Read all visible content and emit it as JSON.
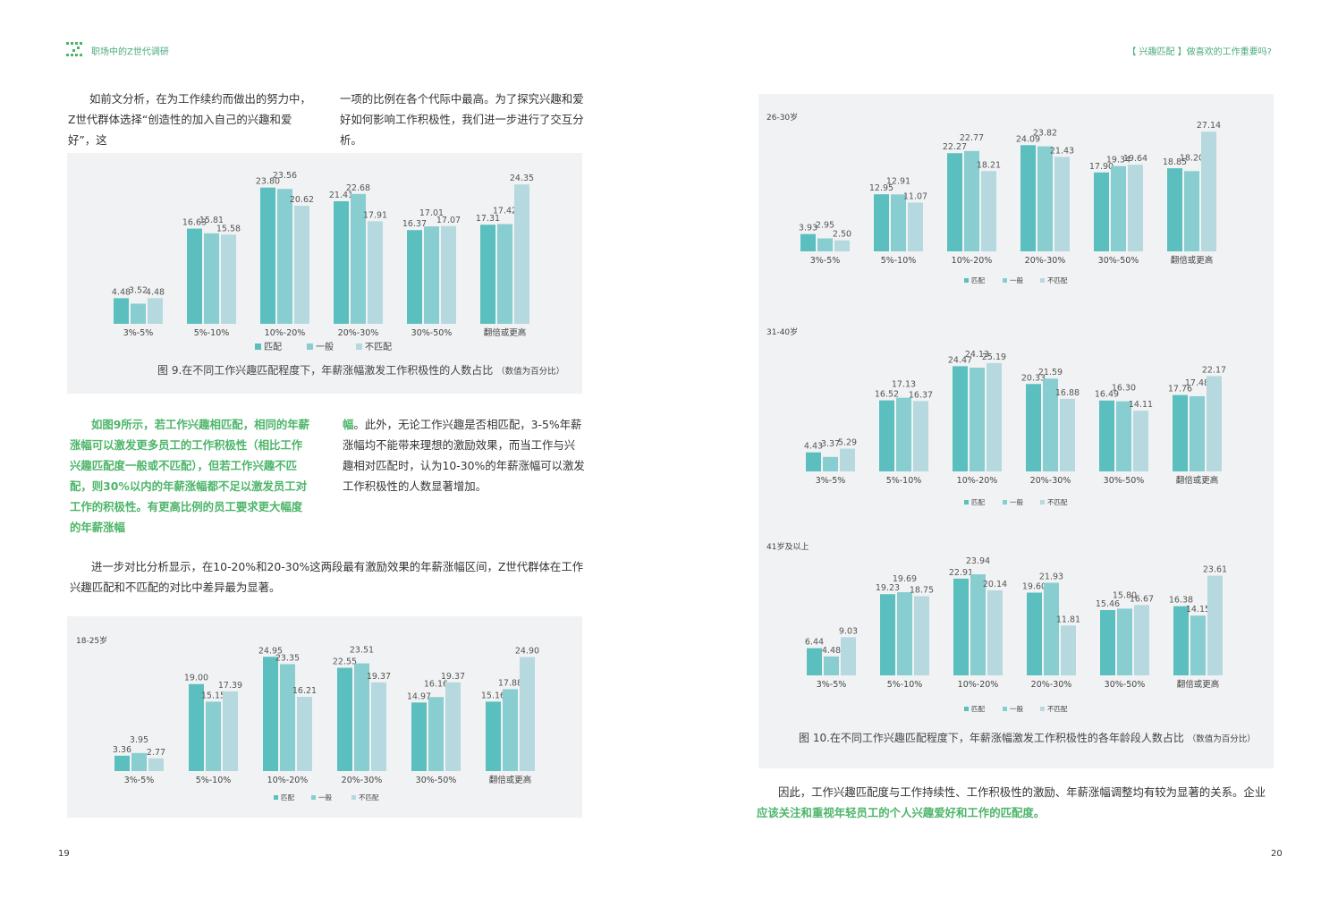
{
  "header": {
    "left_title": "职场中的Z世代调研",
    "right_title": "【 兴趣匹配 】做喜欢的工作重要吗?"
  },
  "page_left": {
    "intro_col1": "如前文分析，在为工作续约而做出的努力中，Z世代群体选择“创造性的加入自己的兴趣和爱好”，这",
    "intro_col2": "一项的比例在各个代际中最高。为了探究兴趣和爱好如何影响工作积极性，我们进一步进行了交互分析。",
    "fig9_caption": "图 9.在不同工作兴趣匹配程度下，年薪涨幅激发工作积极性的人数占比",
    "fig9_note": "（数值为百分比）",
    "highlight_green": "如图9所示，若工作兴趣相匹配，相同的年薪涨幅可以激发更多员工的工作积极性（相比工作兴趣匹配度一般或不匹配），但若工作兴趣不匹配，则30%以内的年薪涨幅都不足以激发员工对工作的积极性。有更高比例的员工要求更大幅度的年薪涨幅",
    "highlight_green_tail": "幅",
    "highlight_rest": "。此外，无论工作兴趣是否相匹配，3-5%年薪涨幅均不能带来理想的激励效果，而当工作与兴趣相对匹配时，认为10-30%的年薪涨幅可以激发工作积极性的人数显著增加。",
    "compare_text": "进一步对比分析显示，在10-20%和20-30%这两段最有激励效果的年薪涨幅区间，Z世代群体在工作兴趣匹配和不匹配的对比中差异最为显著。",
    "page_number": "19"
  },
  "page_right": {
    "fig10_caption": "图 10.在不同工作兴趣匹配程度下，年薪涨幅激发工作积极性的各年龄段人数占比",
    "fig10_note": "（数值为百分比）",
    "conclusion_plain": "因此，工作兴趣匹配度与工作持续性、工作积极性的激励、年薪涨幅调整均有较为显著的关系。企业",
    "conclusion_green_a": "应该关",
    "conclusion_green_b": "注和重视年轻员工的个人兴趣爱好和工作的匹配度。",
    "page_number": "20"
  },
  "colors": {
    "match": "#5bbfbf",
    "general": "#88cdd0",
    "mismatch": "#b5d9df",
    "green": "#4db56a",
    "panel": "#f1f2f3"
  },
  "chart_data": [
    {
      "id": "fig9",
      "type": "bar",
      "title": "",
      "categories": [
        "3%-5%",
        "5%-10%",
        "10%-20%",
        "20%-30%",
        "30%-50%",
        "翻倍或更高"
      ],
      "series": [
        {
          "name": "匹配",
          "values": [
            4.48,
            16.63,
            23.8,
            21.41,
            16.37,
            17.31
          ]
        },
        {
          "name": "一般",
          "values": [
            3.52,
            15.81,
            23.56,
            22.68,
            17.01,
            17.42
          ]
        },
        {
          "name": "不匹配",
          "values": [
            4.48,
            15.58,
            20.62,
            17.91,
            17.07,
            24.35
          ]
        }
      ],
      "labels": [
        [
          "4.48",
          "16.63",
          "23.80",
          "21.41",
          "16.37",
          "17.31"
        ],
        [
          "3.52",
          "15.81",
          "23.56",
          "22.68",
          "17.01",
          "17.42"
        ],
        [
          "4.48",
          "15.58",
          "20.62",
          "17.91",
          "17.07",
          "24.35"
        ]
      ],
      "ylim": [
        0,
        25
      ],
      "legend_position": "bottom",
      "grid": false
    },
    {
      "id": "age18",
      "type": "bar",
      "title": "18-25岁",
      "categories": [
        "3%-5%",
        "5%-10%",
        "10%-20%",
        "20%-30%",
        "30%-50%",
        "翻倍或更高"
      ],
      "series": [
        {
          "name": "匹配",
          "values": [
            3.36,
            19.0,
            24.95,
            22.55,
            14.97,
            15.16
          ]
        },
        {
          "name": "一般",
          "values": [
            3.95,
            15.15,
            23.35,
            23.51,
            16.16,
            17.88
          ]
        },
        {
          "name": "不匹配",
          "values": [
            2.77,
            17.39,
            16.21,
            19.37,
            19.37,
            24.9
          ]
        }
      ],
      "labels": [
        [
          "3.36",
          "19.00",
          "24.95",
          "22.55",
          "14.97",
          "15.16"
        ],
        [
          "3.95",
          "15.15",
          "23.35",
          "23.51",
          "16.16",
          "17.88"
        ],
        [
          "2.77",
          "17.39",
          "16.21",
          "19.37",
          "19.37",
          "24.90"
        ]
      ],
      "ylim": [
        0,
        25
      ],
      "legend_position": "bottom",
      "grid": false
    },
    {
      "id": "age26",
      "type": "bar",
      "title": "26-30岁",
      "categories": [
        "3%-5%",
        "5%-10%",
        "10%-20%",
        "20%-30%",
        "30%-50%",
        "翻倍或更高"
      ],
      "series": [
        {
          "name": "匹配",
          "values": [
            3.93,
            12.95,
            22.27,
            24.09,
            17.9,
            18.85
          ]
        },
        {
          "name": "一般",
          "values": [
            2.95,
            12.91,
            22.77,
            23.82,
            19.34,
            18.2
          ]
        },
        {
          "name": "不匹配",
          "values": [
            2.5,
            11.07,
            18.21,
            21.43,
            19.64,
            27.14
          ]
        }
      ],
      "labels": [
        [
          "3.93",
          "12.95",
          "22.27",
          "24.09",
          "17.90",
          "18.85"
        ],
        [
          "2.95",
          "12.91",
          "22.77",
          "23.82",
          "19.34",
          "18.20"
        ],
        [
          "2.50",
          "11.07",
          "18.21",
          "21.43",
          "19.64",
          "27.14"
        ]
      ],
      "ylim": [
        0,
        28
      ],
      "legend_position": "bottom",
      "grid": false
    },
    {
      "id": "age31",
      "type": "bar",
      "title": "31-40岁",
      "categories": [
        "3%-5%",
        "5%-10%",
        "10%-20%",
        "20%-30%",
        "30%-50%",
        "翻倍或更高"
      ],
      "series": [
        {
          "name": "匹配",
          "values": [
            4.43,
            16.52,
            24.47,
            20.33,
            16.49,
            17.76
          ]
        },
        {
          "name": "一般",
          "values": [
            3.37,
            17.13,
            24.13,
            21.59,
            16.3,
            17.48
          ]
        },
        {
          "name": "不匹配",
          "values": [
            5.29,
            16.37,
            25.19,
            16.88,
            14.11,
            22.17
          ]
        }
      ],
      "labels": [
        [
          "4.43",
          "16.52",
          "24.47",
          "20.33",
          "16.49",
          "17.76"
        ],
        [
          "3.37",
          "17.13",
          "24.13",
          "21.59",
          "16.30",
          "17.48"
        ],
        [
          "5.29",
          "16.37",
          "25.19",
          "16.88",
          "14.11",
          "22.17"
        ]
      ],
      "ylim": [
        0,
        26
      ],
      "legend_position": "bottom",
      "grid": false
    },
    {
      "id": "age41",
      "type": "bar",
      "title": "41岁及以上",
      "categories": [
        "3%-5%",
        "5%-10%",
        "10%-20%",
        "20%-30%",
        "30%-50%",
        "翻倍或更高"
      ],
      "series": [
        {
          "name": "匹配",
          "values": [
            6.44,
            19.23,
            22.91,
            19.6,
            15.46,
            16.38
          ]
        },
        {
          "name": "一般",
          "values": [
            4.48,
            19.69,
            23.94,
            21.93,
            15.8,
            14.15
          ]
        },
        {
          "name": "不匹配",
          "values": [
            9.03,
            18.75,
            20.14,
            11.81,
            16.67,
            23.61
          ]
        }
      ],
      "labels": [
        [
          "6.44",
          "19.23",
          "22.91",
          "19.60",
          "15.46",
          "16.38"
        ],
        [
          "4.48",
          "19.69",
          "23.94",
          "21.93",
          "15.80",
          "14.15"
        ],
        [
          "9.03",
          "18.75",
          "20.14",
          "11.81",
          "16.67",
          "23.61"
        ]
      ],
      "ylim": [
        0,
        25
      ],
      "legend_position": "bottom",
      "grid": false
    }
  ]
}
